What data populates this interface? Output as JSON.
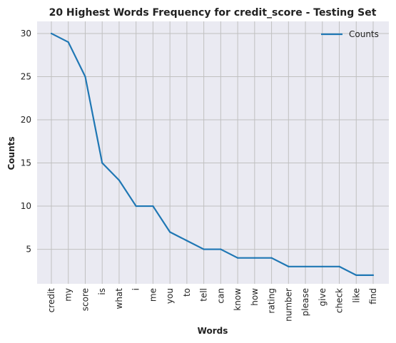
{
  "chart_data": {
    "type": "line",
    "title": "20 Highest Words Frequency for credit_score - Testing Set",
    "xlabel": "Words",
    "ylabel": "Counts",
    "categories": [
      "credit",
      "my",
      "score",
      "is",
      "what",
      "i",
      "me",
      "you",
      "to",
      "tell",
      "can",
      "know",
      "how",
      "rating",
      "number",
      "please",
      "give",
      "check",
      "like",
      "find"
    ],
    "series": [
      {
        "name": "Counts",
        "values": [
          30,
          29,
          25,
          15,
          13,
          10,
          10,
          7,
          6,
          5,
          5,
          4,
          4,
          4,
          3,
          3,
          3,
          3,
          2,
          2
        ],
        "color": "#1f77b4"
      }
    ],
    "ylim": [
      1,
      31.4
    ],
    "yticks": [
      5,
      10,
      15,
      20,
      25,
      30
    ],
    "grid": true,
    "legend": "top-right",
    "background": "#eaeaf2",
    "grid_color": "#c0c0c0"
  }
}
